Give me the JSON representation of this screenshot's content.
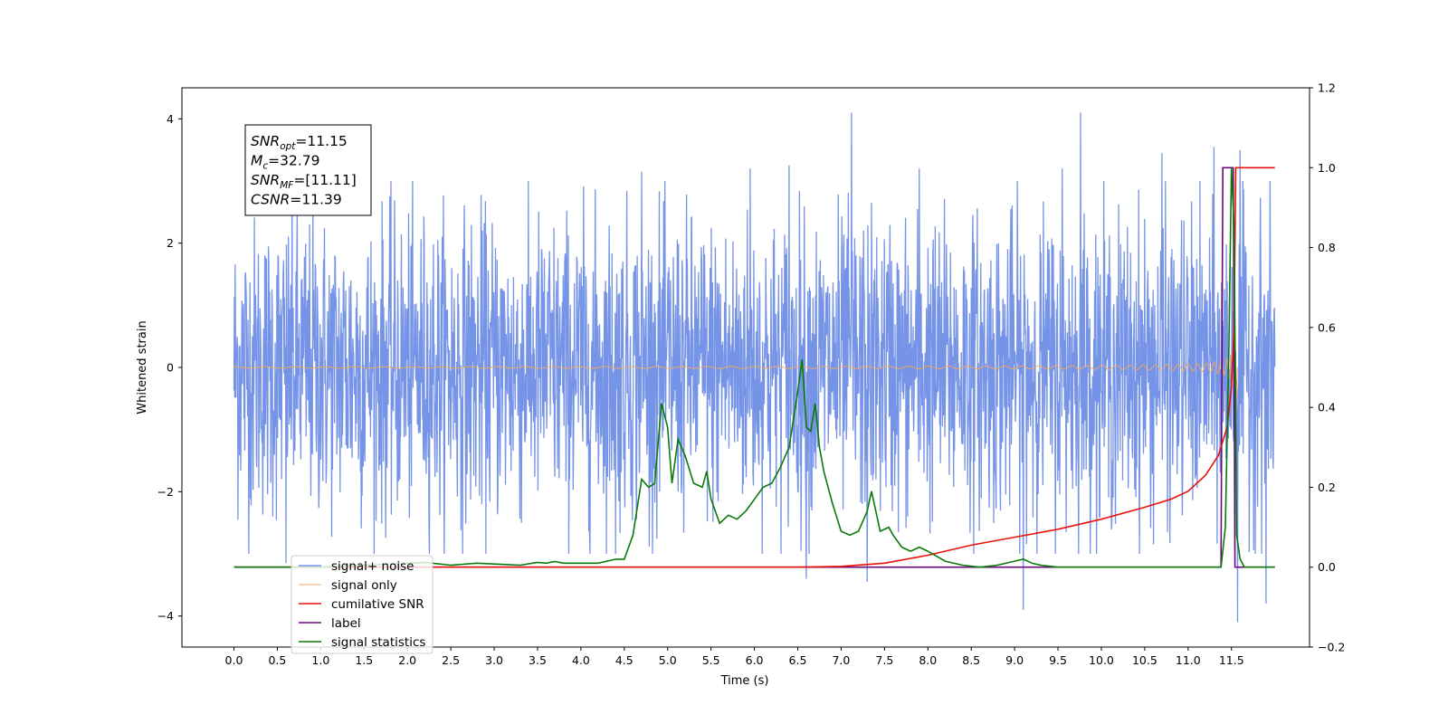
{
  "chart_data": {
    "type": "line",
    "xlabel": "Time (s)",
    "ylabel": "Whitened strain",
    "xlim": [
      -0.6,
      12.4
    ],
    "ylim": [
      -4.5,
      4.5
    ],
    "y2lim": [
      -0.2,
      1.2
    ],
    "x_ticks": [
      "0.0",
      "0.5",
      "1.0",
      "1.5",
      "2.0",
      "2.5",
      "3.0",
      "3.5",
      "4.0",
      "4.5",
      "5.0",
      "5.5",
      "6.0",
      "6.5",
      "7.0",
      "7.5",
      "8.0",
      "8.5",
      "9.0",
      "9.5",
      "10.0",
      "10.5",
      "11.0",
      "11.5"
    ],
    "y_ticks": [
      "-4",
      "-2",
      "0",
      "2",
      "4"
    ],
    "y2_ticks": [
      "-0.2",
      "0.0",
      "0.2",
      "0.4",
      "0.6",
      "0.8",
      "1.0",
      "1.2"
    ],
    "legend_position": "lower-left",
    "annotation": {
      "lines": [
        {
          "sym": "SNR",
          "sub": "opt",
          "rest": "=11.15"
        },
        {
          "sym": "M",
          "sub": "c",
          "rest": "=32.79"
        },
        {
          "sym": "SNR",
          "sub": "MF",
          "rest": "=[11.11]"
        },
        {
          "sym": "CSNR",
          "sub": "",
          "rest": "=11.39"
        }
      ]
    },
    "series": [
      {
        "name": "signal+ noise",
        "axis": "left",
        "color": "#6f8ee6",
        "x_range": [
          0.0,
          12.0
        ],
        "typical_amplitude": 1.4,
        "spikes": [
          {
            "x": 7.12,
            "y": 4.1
          },
          {
            "x": 9.76,
            "y": 4.1
          },
          {
            "x": 4.7,
            "y": 3.15
          },
          {
            "x": 5.95,
            "y": 3.2
          },
          {
            "x": 6.4,
            "y": 3.25
          },
          {
            "x": 7.9,
            "y": 3.2
          },
          {
            "x": 9.55,
            "y": 3.2
          },
          {
            "x": 10.7,
            "y": 3.45
          },
          {
            "x": 11.3,
            "y": 3.55
          },
          {
            "x": 11.6,
            "y": 3.5
          },
          {
            "x": 6.6,
            "y": -3.4
          },
          {
            "x": 7.3,
            "y": -3.45
          },
          {
            "x": 9.1,
            "y": -3.9
          },
          {
            "x": 11.57,
            "y": -4.1
          },
          {
            "x": 11.9,
            "y": -3.8
          },
          {
            "x": 0.6,
            "y": -3.15
          },
          {
            "x": 4.4,
            "y": -3.0
          }
        ]
      },
      {
        "name": "signal only",
        "axis": "left",
        "color": "#f5a85a",
        "x_range": [
          0.0,
          11.55
        ],
        "merger_time": 11.55,
        "peak_amplitude": 0.85
      },
      {
        "name": "cumilative SNR",
        "axis": "right",
        "color": "#e8120c",
        "x": [
          0.0,
          6.5,
          7.0,
          7.5,
          8.0,
          8.5,
          9.0,
          9.5,
          10.0,
          10.5,
          10.8,
          11.0,
          11.2,
          11.35,
          11.45,
          11.5,
          11.53,
          11.55,
          11.6,
          12.0
        ],
        "y": [
          0.0,
          0.0,
          0.002,
          0.01,
          0.03,
          0.055,
          0.075,
          0.095,
          0.12,
          0.15,
          0.17,
          0.19,
          0.23,
          0.28,
          0.35,
          0.45,
          0.6,
          1.0,
          1.0,
          1.0
        ]
      },
      {
        "name": "label",
        "axis": "right",
        "color": "#6a0a7a",
        "x": [
          0.0,
          11.38,
          11.4,
          11.52,
          11.54,
          12.0
        ],
        "y": [
          0.0,
          0.0,
          1.0,
          1.0,
          0.0,
          0.0
        ]
      },
      {
        "name": "signal statistics",
        "axis": "right",
        "color": "#0a7a0a",
        "x": [
          0.0,
          1.0,
          1.5,
          2.0,
          2.2,
          2.5,
          2.8,
          3.0,
          3.3,
          3.5,
          3.6,
          3.7,
          3.8,
          4.0,
          4.2,
          4.4,
          4.5,
          4.6,
          4.7,
          4.78,
          4.85,
          4.93,
          5.0,
          5.05,
          5.12,
          5.2,
          5.3,
          5.4,
          5.45,
          5.5,
          5.6,
          5.7,
          5.8,
          5.9,
          6.0,
          6.1,
          6.2,
          6.3,
          6.4,
          6.5,
          6.55,
          6.6,
          6.65,
          6.7,
          6.75,
          6.8,
          6.9,
          7.0,
          7.1,
          7.2,
          7.3,
          7.35,
          7.45,
          7.55,
          7.6,
          7.7,
          7.8,
          7.9,
          8.0,
          8.2,
          8.4,
          8.6,
          8.8,
          9.0,
          9.1,
          9.2,
          9.3,
          9.5,
          10.0,
          10.5,
          11.0,
          11.3,
          11.38,
          11.43,
          11.47,
          11.5,
          11.53,
          11.56,
          11.6,
          11.65,
          12.0
        ],
        "y": [
          0.0,
          0.0,
          0.005,
          0.01,
          0.012,
          0.005,
          0.01,
          0.008,
          0.005,
          0.012,
          0.01,
          0.014,
          0.01,
          0.01,
          0.01,
          0.02,
          0.02,
          0.08,
          0.22,
          0.2,
          0.21,
          0.41,
          0.35,
          0.21,
          0.32,
          0.28,
          0.21,
          0.2,
          0.24,
          0.17,
          0.11,
          0.13,
          0.12,
          0.14,
          0.17,
          0.2,
          0.21,
          0.25,
          0.3,
          0.44,
          0.52,
          0.35,
          0.34,
          0.41,
          0.3,
          0.24,
          0.16,
          0.09,
          0.08,
          0.09,
          0.14,
          0.19,
          0.09,
          0.1,
          0.08,
          0.05,
          0.04,
          0.05,
          0.04,
          0.015,
          0.005,
          0.0,
          0.005,
          0.015,
          0.02,
          0.01,
          0.005,
          0.0,
          0.0,
          0.0,
          0.0,
          0.0,
          0.0,
          0.1,
          0.55,
          1.0,
          0.85,
          0.08,
          0.02,
          0.0,
          0.0
        ]
      }
    ]
  }
}
